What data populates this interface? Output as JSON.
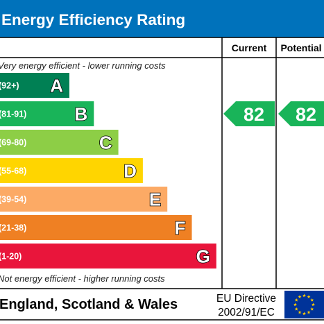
{
  "chart_data": {
    "type": "bar",
    "title": "Energy Efficiency Rating",
    "columns": {
      "current": "Current",
      "potential": "Potential"
    },
    "top_note": "Very energy efficient - lower running costs",
    "bottom_note": "Not energy efficient - higher running costs",
    "bands": [
      {
        "letter": "A",
        "range": "(92+)",
        "color": "#008054"
      },
      {
        "letter": "B",
        "range": "(81-91)",
        "color": "#19b459"
      },
      {
        "letter": "C",
        "range": "(69-80)",
        "color": "#8dce46"
      },
      {
        "letter": "D",
        "range": "(55-68)",
        "color": "#ffd500"
      },
      {
        "letter": "E",
        "range": "(39-54)",
        "color": "#fcaa65"
      },
      {
        "letter": "F",
        "range": "(21-38)",
        "color": "#ef8023"
      },
      {
        "letter": "G",
        "range": "(1-20)",
        "color": "#e9153b"
      }
    ],
    "current": {
      "value": "82",
      "band": "B",
      "color": "#19b459"
    },
    "potential": {
      "value": "82",
      "band": "B",
      "color": "#19b459"
    },
    "header_color": "#0072bb"
  },
  "footer": {
    "region": "England, Scotland & Wales",
    "directive_line1": "EU Directive",
    "directive_line2": "2002/91/EC"
  },
  "icons": {
    "eu_flag": "eu-flag-icon"
  }
}
